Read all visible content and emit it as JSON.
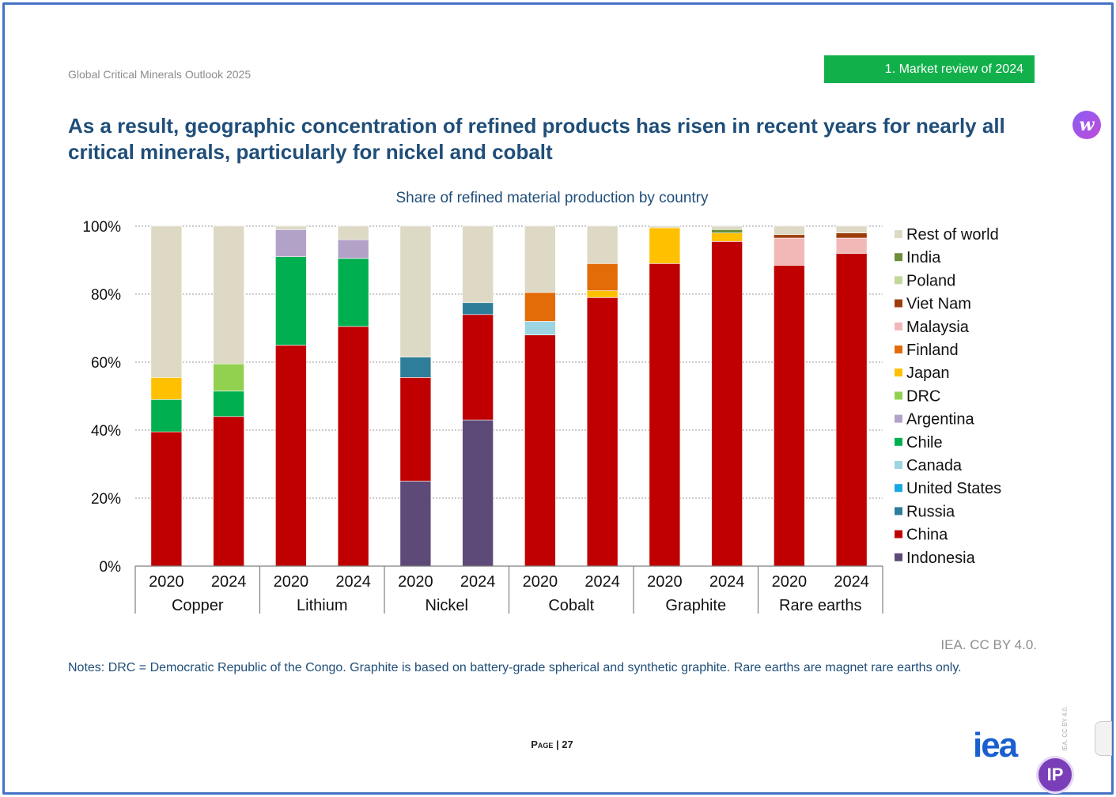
{
  "header": {
    "report_name": "Global Critical Minerals Outlook 2025",
    "section_label": "1. Market review of 2024"
  },
  "slide_title": "As a result, geographic concentration of refined products has risen in recent years for nearly all critical minerals, particularly for nickel and cobalt",
  "credit": "IEA. CC BY 4.0.",
  "notes": "Notes: DRC = Democratic Republic of the Congo. Graphite is based on battery-grade spherical and synthetic graphite. Rare earths are magnet rare earths only.",
  "page_number": "Page | 27",
  "logo_text": "iea",
  "vertical_credit": "IEA. CC BY 4.0.",
  "overlay_icons": {
    "extension": "w",
    "ip": "IP"
  },
  "chart_data": {
    "type": "bar",
    "stacked": true,
    "title": "Share of refined material production by country",
    "yticks": [
      "0%",
      "20%",
      "40%",
      "60%",
      "80%",
      "100%"
    ],
    "ylim": [
      0,
      100
    ],
    "grid": true,
    "legend_position": "right",
    "groups": [
      "Copper",
      "Lithium",
      "Nickel",
      "Cobalt",
      "Graphite",
      "Rare earths"
    ],
    "years": [
      "2020",
      "2024"
    ],
    "categories": [
      "Copper 2020",
      "Copper 2024",
      "Lithium 2020",
      "Lithium 2024",
      "Nickel 2020",
      "Nickel 2024",
      "Cobalt 2020",
      "Cobalt 2024",
      "Graphite 2020",
      "Graphite 2024",
      "Rare earths 2020",
      "Rare earths 2024"
    ],
    "series": [
      {
        "name": "Indonesia",
        "color": "#5e4a78",
        "values": [
          0,
          0,
          0,
          0,
          25,
          43,
          0,
          0,
          0,
          0,
          0,
          0
        ]
      },
      {
        "name": "China",
        "color": "#c00000",
        "values": [
          39.5,
          44,
          65,
          70.5,
          30.5,
          31,
          68,
          79,
          89,
          95.5,
          88.5,
          92
        ]
      },
      {
        "name": "Russia",
        "color": "#2e7e99",
        "values": [
          0,
          0,
          0,
          0,
          6,
          3.5,
          0,
          0,
          0,
          0,
          0,
          0
        ]
      },
      {
        "name": "United States",
        "color": "#1aa8e0",
        "values": [
          0,
          0,
          0,
          0,
          0,
          0,
          0,
          0,
          0,
          0,
          0,
          0
        ]
      },
      {
        "name": "Canada",
        "color": "#9dd4e2",
        "values": [
          0,
          0,
          0,
          0,
          0,
          0,
          4,
          0,
          0,
          0,
          0,
          0
        ]
      },
      {
        "name": "Chile",
        "color": "#00b050",
        "values": [
          9.5,
          7.5,
          26,
          20,
          0,
          0,
          0,
          0,
          0,
          0,
          0,
          0
        ]
      },
      {
        "name": "Argentina",
        "color": "#b3a2c7",
        "values": [
          0,
          0,
          8,
          5.5,
          0,
          0,
          0,
          0,
          0,
          0,
          0,
          0
        ]
      },
      {
        "name": "DRC",
        "color": "#92d050",
        "values": [
          0,
          8,
          0,
          0,
          0,
          0,
          0,
          0,
          0,
          0,
          0,
          0
        ]
      },
      {
        "name": "Japan",
        "color": "#ffc000",
        "values": [
          6.5,
          0,
          0,
          0,
          0,
          0,
          0,
          2,
          10.5,
          2.5,
          0,
          0
        ]
      },
      {
        "name": "Finland",
        "color": "#e36c09",
        "values": [
          0,
          0,
          0,
          0,
          0,
          0,
          8.5,
          8,
          0,
          0,
          0,
          0
        ]
      },
      {
        "name": "Malaysia",
        "color": "#f2b8b8",
        "values": [
          0,
          0,
          0,
          0,
          0,
          0,
          0,
          0,
          0,
          0,
          8,
          4.5
        ]
      },
      {
        "name": "Viet Nam",
        "color": "#9c3d0c",
        "values": [
          0,
          0,
          0,
          0,
          0,
          0,
          0,
          0,
          0,
          0,
          1,
          1.5
        ]
      },
      {
        "name": "Poland",
        "color": "#c4d79b",
        "values": [
          0,
          0,
          0,
          0,
          0,
          0,
          0,
          0,
          0,
          0,
          0,
          0
        ]
      },
      {
        "name": "India",
        "color": "#6a8e3a",
        "values": [
          0,
          0,
          0,
          0,
          0,
          0,
          0,
          0,
          0,
          1,
          0,
          0
        ]
      },
      {
        "name": "Rest of world",
        "color": "#ddd9c4",
        "values": [
          44.5,
          40.5,
          1,
          4,
          38.5,
          22.5,
          19.5,
          11,
          0.5,
          1,
          2.5,
          2
        ]
      }
    ]
  }
}
